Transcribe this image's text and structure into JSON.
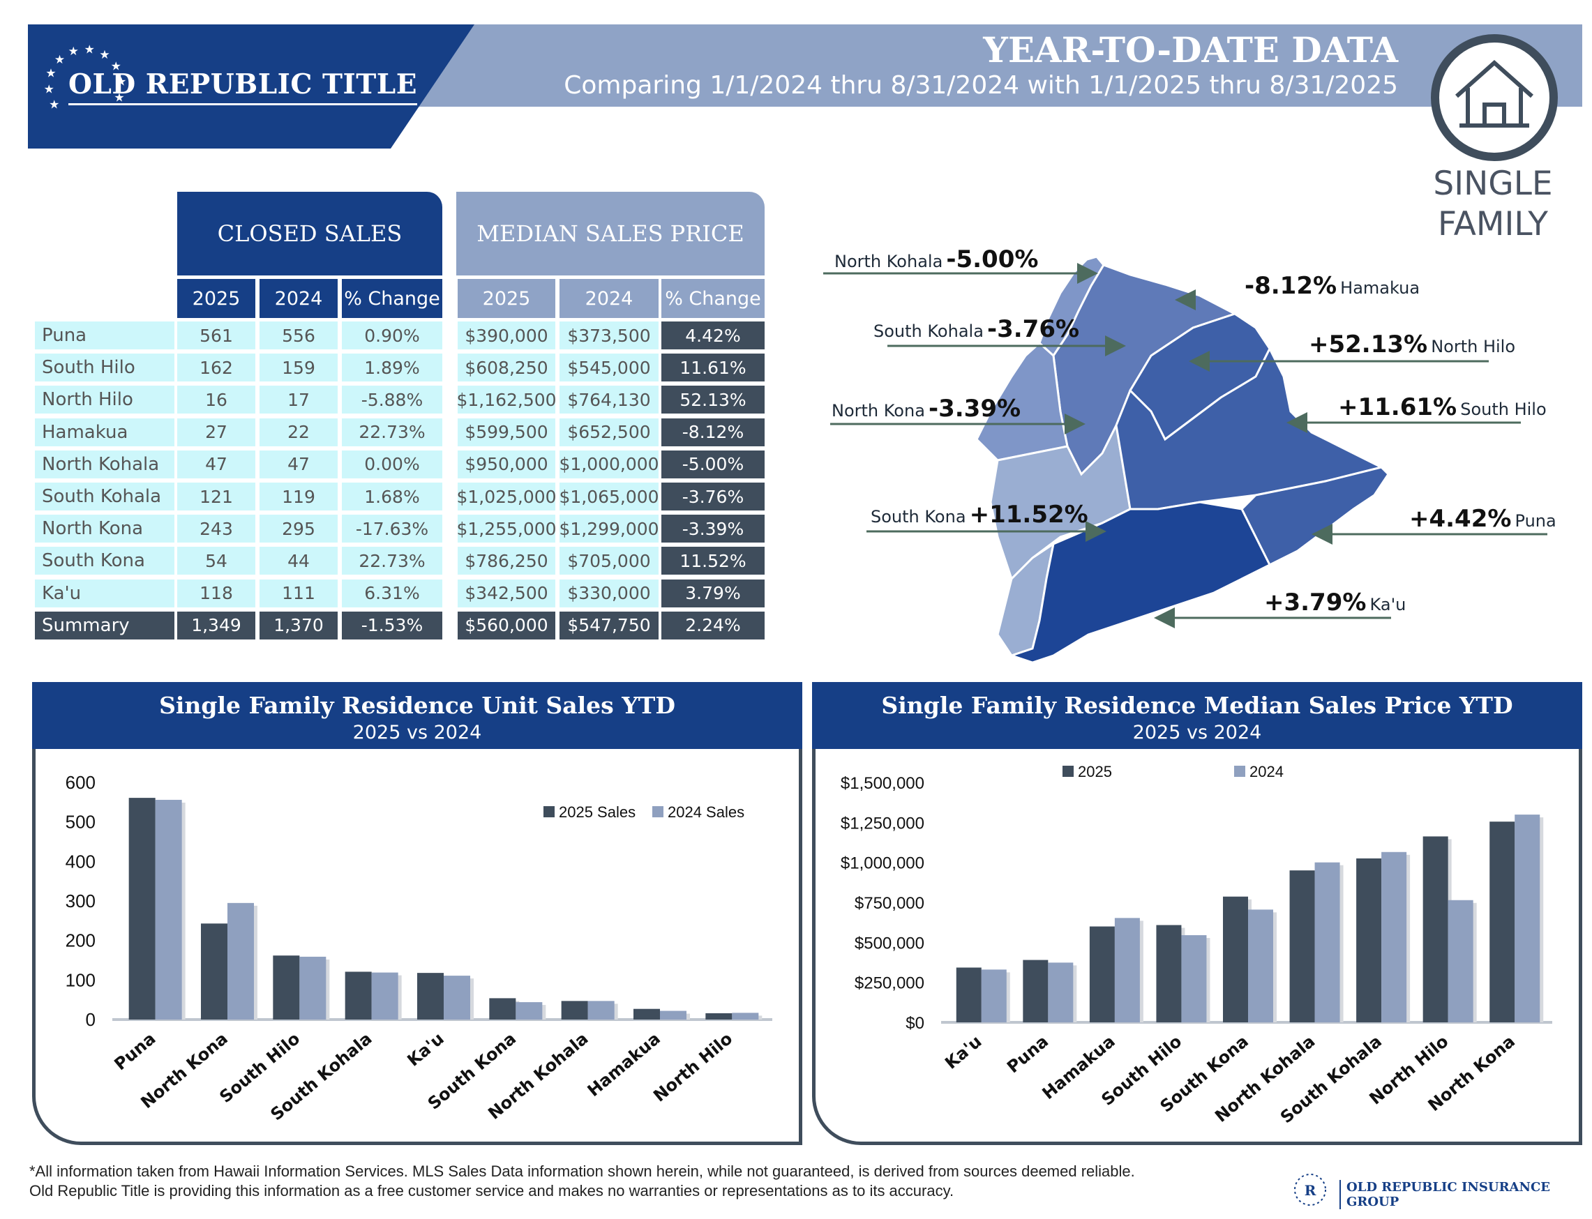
{
  "header": {
    "brand": "OLD REPUBLIC TITLE",
    "title": "YEAR-TO-DATE DATA",
    "subtitle": "Comparing 1/1/2024 thru 8/31/2024 with 1/1/2025 thru 8/31/2025",
    "category_line1": "SINGLE",
    "category_line2": "FAMILY",
    "house_icon": "house-icon"
  },
  "tables": {
    "closed_sales_title": "CLOSED SALES",
    "median_price_title": "MEDIAN SALES PRICE",
    "col_2025": "2025",
    "col_2024": "2024",
    "col_change": "% Change",
    "rows": [
      {
        "area": "Puna",
        "s25": "561",
        "s24": "556",
        "sc": "0.90%",
        "p25": "$390,000",
        "p24": "$373,500",
        "pc": "4.42%"
      },
      {
        "area": "South Hilo",
        "s25": "162",
        "s24": "159",
        "sc": "1.89%",
        "p25": "$608,250",
        "p24": "$545,000",
        "pc": "11.61%"
      },
      {
        "area": "North Hilo",
        "s25": "16",
        "s24": "17",
        "sc": "-5.88%",
        "p25": "$1,162,500",
        "p24": "$764,130",
        "pc": "52.13%"
      },
      {
        "area": "Hamakua",
        "s25": "27",
        "s24": "22",
        "sc": "22.73%",
        "p25": "$599,500",
        "p24": "$652,500",
        "pc": "-8.12%"
      },
      {
        "area": "North Kohala",
        "s25": "47",
        "s24": "47",
        "sc": "0.00%",
        "p25": "$950,000",
        "p24": "$1,000,000",
        "pc": "-5.00%"
      },
      {
        "area": "South Kohala",
        "s25": "121",
        "s24": "119",
        "sc": "1.68%",
        "p25": "$1,025,000",
        "p24": "$1,065,000",
        "pc": "-3.76%"
      },
      {
        "area": "North Kona",
        "s25": "243",
        "s24": "295",
        "sc": "-17.63%",
        "p25": "$1,255,000",
        "p24": "$1,299,000",
        "pc": "-3.39%"
      },
      {
        "area": "South Kona",
        "s25": "54",
        "s24": "44",
        "sc": "22.73%",
        "p25": "$786,250",
        "p24": "$705,000",
        "pc": "11.52%"
      },
      {
        "area": "Ka'u",
        "s25": "118",
        "s24": "111",
        "sc": "6.31%",
        "p25": "$342,500",
        "p24": "$330,000",
        "pc": "3.79%"
      }
    ],
    "summary": {
      "area": "Summary",
      "s25": "1,349",
      "s24": "1,370",
      "sc": "-1.53%",
      "p25": "$560,000",
      "p24": "$547,750",
      "pc": "2.24%"
    }
  },
  "map": {
    "colors": {
      "light": "#9aaed2",
      "mid": "#7f96c8",
      "midDark": "#5f7ab8",
      "dark": "#3e60a8",
      "darkest": "#1d4596",
      "arrow": "#4d6b5e"
    },
    "labels": [
      {
        "key": "north-kohala",
        "name": "North Kohala",
        "pct": "-5.00%"
      },
      {
        "key": "hamakua",
        "name": "Hamakua",
        "pct": "-8.12%"
      },
      {
        "key": "south-kohala",
        "name": "South Kohala",
        "pct": "-3.76%"
      },
      {
        "key": "north-hilo",
        "name": "North Hilo",
        "pct": "+52.13%"
      },
      {
        "key": "north-kona",
        "name": "North Kona",
        "pct": "-3.39%"
      },
      {
        "key": "south-hilo",
        "name": "South Hilo",
        "pct": "+11.61%"
      },
      {
        "key": "south-kona",
        "name": "South Kona",
        "pct": "+11.52%"
      },
      {
        "key": "puna",
        "name": "Puna",
        "pct": "+4.42%"
      },
      {
        "key": "kau",
        "name": "Ka'u",
        "pct": "+3.79%"
      }
    ]
  },
  "chart_data": [
    {
      "type": "bar",
      "title": "Single Family Residence Unit Sales YTD",
      "subtitle": "2025 vs 2024",
      "categories": [
        "Puna",
        "North Kona",
        "South Hilo",
        "South Kohala",
        "Ka'u",
        "South Kona",
        "North Kohala",
        "Hamakua",
        "North Hilo"
      ],
      "series": [
        {
          "name": "2025 Sales",
          "values": [
            561,
            243,
            162,
            121,
            118,
            54,
            47,
            27,
            16
          ],
          "color": "#3f4d5c"
        },
        {
          "name": "2024 Sales",
          "values": [
            556,
            295,
            159,
            119,
            111,
            44,
            47,
            22,
            17
          ],
          "color": "#8fa0bf"
        }
      ],
      "ylim": [
        0,
        600
      ],
      "yticks": [
        "600",
        "500",
        "400",
        "300",
        "200",
        "100",
        "0"
      ],
      "legend": "top-right"
    },
    {
      "type": "bar",
      "title": "Single Family Residence Median Sales Price YTD",
      "subtitle": "2025 vs 2024",
      "categories": [
        "Ka'u",
        "Puna",
        "Hamakua",
        "South Hilo",
        "South Kona",
        "North Kohala",
        "South Kohala",
        "North Hilo",
        "North Kona"
      ],
      "series": [
        {
          "name": "2025",
          "values": [
            342500,
            390000,
            599500,
            608250,
            786250,
            950000,
            1025000,
            1162500,
            1255000
          ],
          "color": "#3f4d5c"
        },
        {
          "name": "2024",
          "values": [
            330000,
            373500,
            652500,
            545000,
            705000,
            1000000,
            1065000,
            764130,
            1299000
          ],
          "color": "#8fa0bf"
        }
      ],
      "ylim": [
        0,
        1500000
      ],
      "yticks": [
        "$1,500,000",
        "$1,250,000",
        "$1,000,000",
        "$750,000",
        "$500,000",
        "$250,000",
        "$0"
      ],
      "legend": "top-left"
    }
  ],
  "footer": {
    "line1": "*All information taken from Hawaii Information Services.  MLS Sales Data information shown herein, while not guaranteed,  is derived from sources deemed reliable.",
    "line2": "Old Republic Title is providing this information as a free customer service and makes no warranties or representations as to its accuracy.",
    "group_brand": "OLD REPUBLIC INSURANCE GROUP"
  }
}
